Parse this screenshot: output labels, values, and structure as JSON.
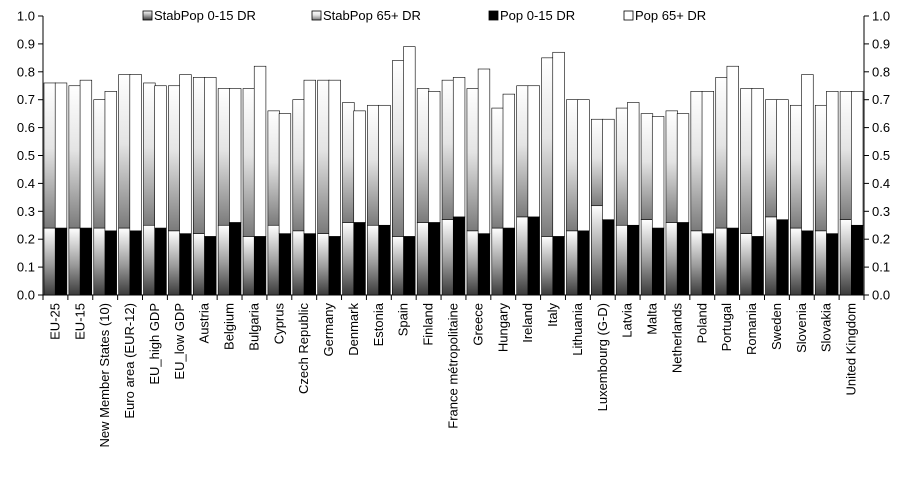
{
  "chart_data": {
    "type": "bar",
    "layout": "stacked, 2 overlapping pairs per category",
    "ylim": [
      0,
      1.0
    ],
    "y_ticks": [
      "0.0",
      "0.1",
      "0.2",
      "0.3",
      "0.4",
      "0.5",
      "0.6",
      "0.7",
      "0.8",
      "0.9",
      "1.0"
    ],
    "legend": [
      {
        "name": "StabPop 0-15 DR",
        "color": "gradient-dark",
        "icon": "dark-gradient-swatch"
      },
      {
        "name": "StabPop 65+ DR",
        "color": "gradient-light",
        "icon": "light-gradient-swatch"
      },
      {
        "name": "Pop 0-15 DR",
        "color": "#000000",
        "icon": "black-swatch"
      },
      {
        "name": "Pop 65+ DR",
        "color": "#ffffff",
        "icon": "white-swatch"
      }
    ],
    "legend_position": "top",
    "categories": [
      "EU-25",
      "EU-15",
      "New Member States (10)",
      "Euro area (EUR-12)",
      "EU_high GDP",
      "EU_low GDP",
      "Austria",
      "Belgium",
      "Bulgaria",
      "Cyprus",
      "Czech Republic",
      "Germany",
      "Denmark",
      "Estonia",
      "Spain",
      "Finland",
      "France métropolitaine",
      "Greece",
      "Hungary",
      "Ireland",
      "Italy",
      "Lithuania",
      "Luxembourg (G-D)",
      "Latvia",
      "Malta",
      "Netherlands",
      "Poland",
      "Portugal",
      "Romania",
      "Sweden",
      "Slovenia",
      "Slovakia",
      "United Kingdom"
    ],
    "series": [
      {
        "name": "StabPop 0-15 DR",
        "values": [
          0.24,
          0.24,
          0.24,
          0.24,
          0.25,
          0.23,
          0.22,
          0.25,
          0.21,
          0.25,
          0.23,
          0.22,
          0.26,
          0.25,
          0.21,
          0.26,
          0.27,
          0.23,
          0.24,
          0.28,
          0.21,
          0.23,
          0.32,
          0.25,
          0.27,
          0.26,
          0.23,
          0.24,
          0.22,
          0.28,
          0.24,
          0.23,
          0.27
        ]
      },
      {
        "name": "StabPop 65+ DR",
        "values": [
          0.52,
          0.51,
          0.46,
          0.55,
          0.51,
          0.52,
          0.56,
          0.49,
          0.53,
          0.41,
          0.47,
          0.55,
          0.43,
          0.43,
          0.63,
          0.48,
          0.5,
          0.51,
          0.43,
          0.47,
          0.64,
          0.47,
          0.31,
          0.42,
          0.38,
          0.4,
          0.5,
          0.54,
          0.52,
          0.42,
          0.44,
          0.45,
          0.46
        ]
      },
      {
        "name": "Pop 0-15 DR",
        "values": [
          0.24,
          0.24,
          0.23,
          0.23,
          0.24,
          0.22,
          0.21,
          0.26,
          0.21,
          0.22,
          0.22,
          0.21,
          0.26,
          0.25,
          0.21,
          0.26,
          0.28,
          0.22,
          0.24,
          0.28,
          0.21,
          0.23,
          0.27,
          0.25,
          0.24,
          0.26,
          0.22,
          0.24,
          0.21,
          0.27,
          0.23,
          0.22,
          0.25
        ]
      },
      {
        "name": "Pop 65+ DR",
        "values": [
          0.52,
          0.53,
          0.5,
          0.56,
          0.51,
          0.57,
          0.57,
          0.48,
          0.61,
          0.43,
          0.55,
          0.56,
          0.4,
          0.43,
          0.68,
          0.47,
          0.5,
          0.59,
          0.48,
          0.47,
          0.66,
          0.47,
          0.36,
          0.44,
          0.4,
          0.39,
          0.51,
          0.58,
          0.53,
          0.43,
          0.56,
          0.51,
          0.48
        ]
      }
    ]
  }
}
